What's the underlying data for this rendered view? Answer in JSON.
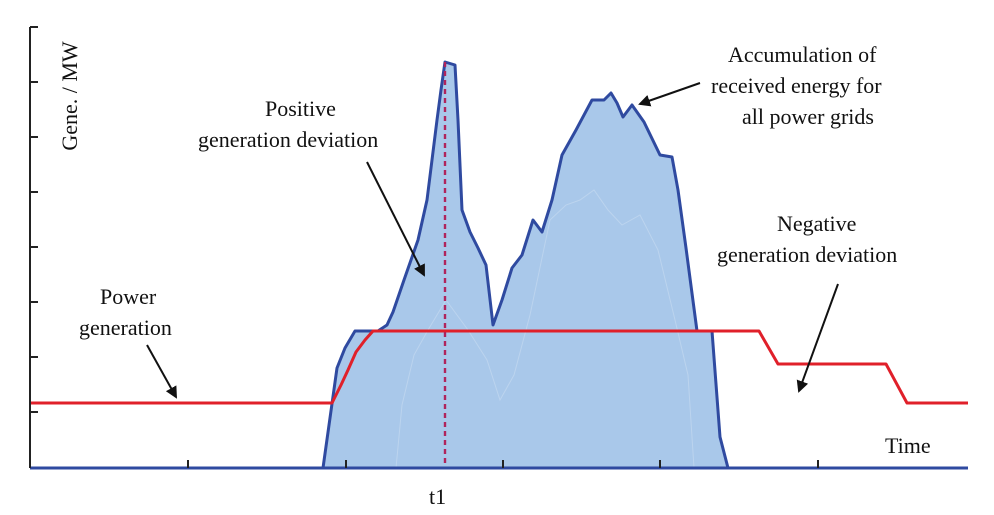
{
  "diagram": {
    "y_axis_label": "Gene. / MW",
    "x_axis_label": "Time",
    "t1_label": "t1",
    "annotations": {
      "accumulation": [
        "Accumulation of",
        "received energy for",
        "all power grids"
      ],
      "positive": [
        "Positive",
        "generation deviation"
      ],
      "negative": [
        "Negative",
        "generation deviation"
      ],
      "power": [
        "Power",
        "generation"
      ]
    },
    "colors": {
      "fill": "#a9c8ea",
      "outline": "#2f4aa0",
      "power_line": "#e0202a",
      "t1_line": "#b0245c",
      "axis": "#222222",
      "arrow": "#111111"
    }
  }
}
